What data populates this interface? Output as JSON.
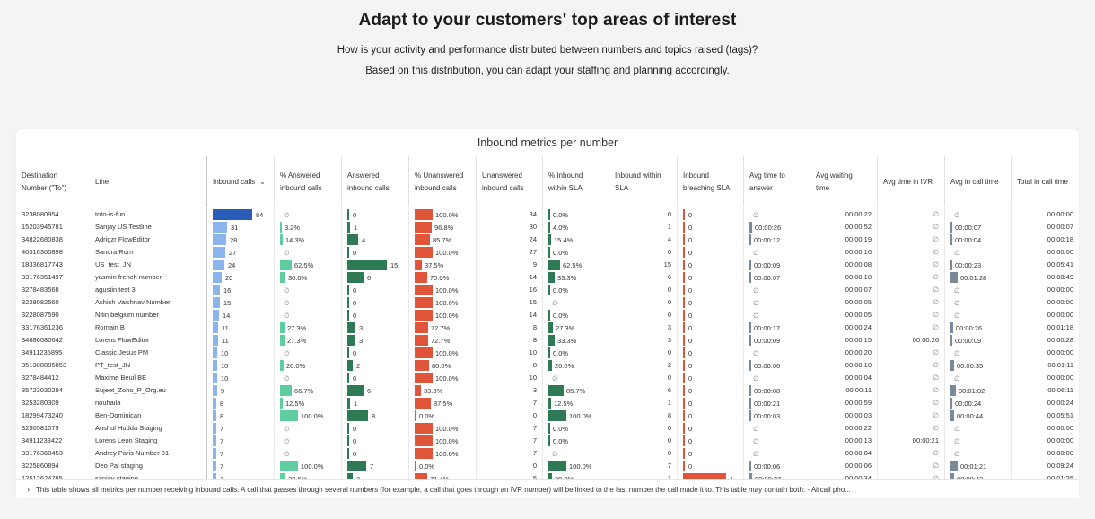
{
  "header": {
    "title": "Adapt to your customers' top areas of interest",
    "subtitle1": "How is your activity and performance distributed between numbers and topics raised (tags)?",
    "subtitle2": "Based on this distribution, you can adapt your staffing and planning accordingly."
  },
  "table": {
    "title": "Inbound metrics per number",
    "columns": [
      {
        "label_lines": [
          "Destination",
          "Number (\"To\")"
        ]
      },
      {
        "label_lines": [
          "Line"
        ]
      },
      {
        "label_lines": [
          "Inbound calls"
        ]
      },
      {
        "label_lines": [
          "% Answered",
          "inbound calls"
        ]
      },
      {
        "label_lines": [
          "Answered",
          "inbound calls"
        ]
      },
      {
        "label_lines": [
          "% Unanswered",
          "inbound calls"
        ]
      },
      {
        "label_lines": [
          "Unanswered",
          "inbound calls"
        ]
      },
      {
        "label_lines": [
          "% Inbound",
          "within SLA"
        ]
      },
      {
        "label_lines": [
          "Inbound within",
          "SLA"
        ]
      },
      {
        "label_lines": [
          "Inbound",
          "breaching SLA"
        ]
      },
      {
        "label_lines": [
          "Avg time to",
          "answer"
        ]
      },
      {
        "label_lines": [
          "Avg waiting",
          "time"
        ]
      },
      {
        "label_lines": [
          "Avg time in IVR"
        ]
      },
      {
        "label_lines": [
          "Avg in call time"
        ]
      },
      {
        "label_lines": [
          "Total in call time"
        ]
      }
    ],
    "null_symbol": "∅",
    "colors": {
      "inbound_top": "#2a5db8",
      "inbound": "#8ab4ec",
      "answered_pct": "#5fcda0",
      "answered": "#2e7a55",
      "unanswered": "#e0553a",
      "sla_pct": "#2e7a55",
      "breach": "#e0553a",
      "time": "#7a8a99"
    },
    "rows": [
      {
        "number": "3238080954",
        "line": "toto-is-fun",
        "inbound": 84,
        "ans_pct": null,
        "ans": 0,
        "unans_pct": 100.0,
        "unans": 84,
        "sla_pct": 0.0,
        "sla": 0,
        "breach": 0,
        "ata": null,
        "awt": "00:00:22",
        "ivr": null,
        "aic": null,
        "tic": "00:00:00"
      },
      {
        "number": "15203945781",
        "line": "Sanjay US Testline",
        "inbound": 31,
        "ans_pct": 3.2,
        "ans": 1,
        "unans_pct": 96.8,
        "unans": 30,
        "sla_pct": 4.0,
        "sla": 1,
        "breach": 0,
        "ata": "00:00:26",
        "awt": "00:00:52",
        "ivr": null,
        "aic": "00:00:07",
        "tic": "00:00:07"
      },
      {
        "number": "34822680838",
        "line": "Adrigzr FlowEditor",
        "inbound": 28,
        "ans_pct": 14.3,
        "ans": 4,
        "unans_pct": 85.7,
        "unans": 24,
        "sla_pct": 15.4,
        "sla": 4,
        "breach": 0,
        "ata": "00:00:12",
        "awt": "00:00:19",
        "ivr": null,
        "aic": "00:00:04",
        "tic": "00:00:18"
      },
      {
        "number": "40316300898",
        "line": "Sandra Rom",
        "inbound": 27,
        "ans_pct": null,
        "ans": 0,
        "unans_pct": 100.0,
        "unans": 27,
        "sla_pct": 0.0,
        "sla": 0,
        "breach": 0,
        "ata": null,
        "awt": "00:00:16",
        "ivr": null,
        "aic": null,
        "tic": "00:00:00"
      },
      {
        "number": "18336817743",
        "line": "US_test_JN",
        "inbound": 24,
        "ans_pct": 62.5,
        "ans": 15,
        "unans_pct": 37.5,
        "unans": 9,
        "sla_pct": 62.5,
        "sla": 15,
        "breach": 0,
        "ata": "00:00:09",
        "awt": "00:00:08",
        "ivr": null,
        "aic": "00:00:23",
        "tic": "00:05:41"
      },
      {
        "number": "33176351497",
        "line": "yasmin french number",
        "inbound": 20,
        "ans_pct": 30.0,
        "ans": 6,
        "unans_pct": 70.0,
        "unans": 14,
        "sla_pct": 33.3,
        "sla": 6,
        "breach": 0,
        "ata": "00:00:07",
        "awt": "00:00:18",
        "ivr": null,
        "aic": "00:01:28",
        "tic": "00:08:49"
      },
      {
        "number": "3278483568",
        "line": "agustin test 3",
        "inbound": 16,
        "ans_pct": null,
        "ans": 0,
        "unans_pct": 100.0,
        "unans": 16,
        "sla_pct": 0.0,
        "sla": 0,
        "breach": 0,
        "ata": null,
        "awt": "00:00:07",
        "ivr": null,
        "aic": null,
        "tic": "00:00:00"
      },
      {
        "number": "3228082560",
        "line": "Ashish Vaishnav Number",
        "inbound": 15,
        "ans_pct": null,
        "ans": 0,
        "unans_pct": 100.0,
        "unans": 15,
        "sla_pct": null,
        "sla": 0,
        "breach": 0,
        "ata": null,
        "awt": "00:00:05",
        "ivr": null,
        "aic": null,
        "tic": "00:00:00"
      },
      {
        "number": "3228087590",
        "line": "Nitin belgium number",
        "inbound": 14,
        "ans_pct": null,
        "ans": 0,
        "unans_pct": 100.0,
        "unans": 14,
        "sla_pct": 0.0,
        "sla": 0,
        "breach": 0,
        "ata": null,
        "awt": "00:00:05",
        "ivr": null,
        "aic": null,
        "tic": "00:00:00"
      },
      {
        "number": "33176361236",
        "line": "Romain B",
        "inbound": 11,
        "ans_pct": 27.3,
        "ans": 3,
        "unans_pct": 72.7,
        "unans": 8,
        "sla_pct": 27.3,
        "sla": 3,
        "breach": 0,
        "ata": "00:00:17",
        "awt": "00:00:24",
        "ivr": null,
        "aic": "00:00:26",
        "tic": "00:01:18"
      },
      {
        "number": "34886080642",
        "line": "Lorens FlowEditor",
        "inbound": 11,
        "ans_pct": 27.3,
        "ans": 3,
        "unans_pct": 72.7,
        "unans": 8,
        "sla_pct": 33.3,
        "sla": 3,
        "breach": 0,
        "ata": "00:00:09",
        "awt": "00:00:15",
        "ivr": "00:00:26",
        "aic": "00:00:09",
        "tic": "00:00:28"
      },
      {
        "number": "34911235895",
        "line": "Classic Jesus PM",
        "inbound": 10,
        "ans_pct": null,
        "ans": 0,
        "unans_pct": 100.0,
        "unans": 10,
        "sla_pct": 0.0,
        "sla": 0,
        "breach": 0,
        "ata": null,
        "awt": "00:00:20",
        "ivr": null,
        "aic": null,
        "tic": "00:00:00"
      },
      {
        "number": "351308805853",
        "line": "PT_test_JN",
        "inbound": 10,
        "ans_pct": 20.0,
        "ans": 2,
        "unans_pct": 80.0,
        "unans": 8,
        "sla_pct": 20.0,
        "sla": 2,
        "breach": 0,
        "ata": "00:00:06",
        "awt": "00:00:10",
        "ivr": null,
        "aic": "00:00:35",
        "tic": "00:01:11"
      },
      {
        "number": "3278484412",
        "line": "Maxime Beuil BE",
        "inbound": 10,
        "ans_pct": null,
        "ans": 0,
        "unans_pct": 100.0,
        "unans": 10,
        "sla_pct": null,
        "sla": 0,
        "breach": 0,
        "ata": null,
        "awt": "00:00:04",
        "ivr": null,
        "aic": null,
        "tic": "00:00:00"
      },
      {
        "number": "35723030294",
        "line": "Sujeet_Zoho_P_Org.eu",
        "inbound": 9,
        "ans_pct": 66.7,
        "ans": 6,
        "unans_pct": 33.3,
        "unans": 3,
        "sla_pct": 85.7,
        "sla": 6,
        "breach": 0,
        "ata": "00:00:08",
        "awt": "00:00:11",
        "ivr": null,
        "aic": "00:01:02",
        "tic": "00:06:11"
      },
      {
        "number": "3253280309",
        "line": "nouhaila",
        "inbound": 8,
        "ans_pct": 12.5,
        "ans": 1,
        "unans_pct": 87.5,
        "unans": 7,
        "sla_pct": 12.5,
        "sla": 1,
        "breach": 0,
        "ata": "00:00:21",
        "awt": "00:00:59",
        "ivr": null,
        "aic": "00:00:24",
        "tic": "00:00:24"
      },
      {
        "number": "18299473240",
        "line": "Ben-Dominican",
        "inbound": 8,
        "ans_pct": 100.0,
        "ans": 8,
        "unans_pct": 0.0,
        "unans": 0,
        "sla_pct": 100.0,
        "sla": 8,
        "breach": 0,
        "ata": "00:00:03",
        "awt": "00:00:03",
        "ivr": null,
        "aic": "00:00:44",
        "tic": "00:05:51"
      },
      {
        "number": "3250581079",
        "line": "Anshul Hudda Staging",
        "inbound": 7,
        "ans_pct": null,
        "ans": 0,
        "unans_pct": 100.0,
        "unans": 7,
        "sla_pct": 0.0,
        "sla": 0,
        "breach": 0,
        "ata": null,
        "awt": "00:00:22",
        "ivr": null,
        "aic": null,
        "tic": "00:00:00"
      },
      {
        "number": "34911233422",
        "line": "Lorens Leon Staging",
        "inbound": 7,
        "ans_pct": null,
        "ans": 0,
        "unans_pct": 100.0,
        "unans": 7,
        "sla_pct": 0.0,
        "sla": 0,
        "breach": 0,
        "ata": null,
        "awt": "00:00:13",
        "ivr": "00:00:21",
        "aic": null,
        "tic": "00:00:00"
      },
      {
        "number": "33176360453",
        "line": "Andrey Paris Number 01",
        "inbound": 7,
        "ans_pct": null,
        "ans": 0,
        "unans_pct": 100.0,
        "unans": 7,
        "sla_pct": null,
        "sla": 0,
        "breach": 0,
        "ata": null,
        "awt": "00:00:04",
        "ivr": null,
        "aic": null,
        "tic": "00:00:00"
      },
      {
        "number": "3225860894",
        "line": "Deo Pal staging",
        "inbound": 7,
        "ans_pct": 100.0,
        "ans": 7,
        "unans_pct": 0.0,
        "unans": 0,
        "sla_pct": 100.0,
        "sla": 7,
        "breach": 0,
        "ata": "00:00:06",
        "awt": "00:00:06",
        "ivr": null,
        "aic": "00:01:21",
        "tic": "00:09:24"
      },
      {
        "number": "12512624785",
        "line": "sanjay staging",
        "inbound": 7,
        "ans_pct": 28.6,
        "ans": 2,
        "unans_pct": 71.4,
        "unans": 5,
        "sla_pct": 20.0,
        "sla": 1,
        "breach": 1,
        "ata": "00:00:27",
        "awt": "00:00:34",
        "ivr": null,
        "aic": "00:00:42",
        "tic": "00:01:25"
      }
    ],
    "footer": "This table shows all metrics per number receiving inbound calls. A call that passes through several numbers (for example, a call that goes through an IVR number) will be linked to the last number the call made it to. This table may contain both: - Aircall pho..."
  }
}
